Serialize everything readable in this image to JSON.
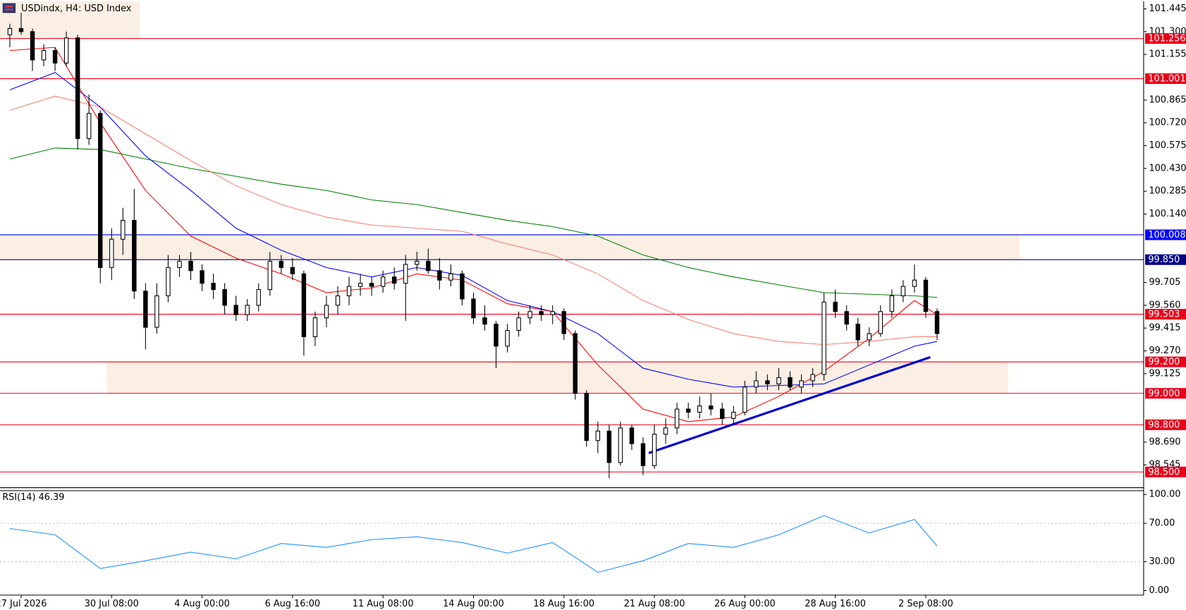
{
  "chart_data": {
    "type": "candlestick",
    "title": "USDindx, H4:  USD Index",
    "ylim": [
      98.4,
      101.493
    ],
    "yticks": [
      101.445,
      {
        "value": 101.3,
        "label": "101.300"
      },
      101.155,
      100.865,
      {
        "value": 100.72,
        "label": "100.720"
      },
      100.575,
      {
        "value": 100.43,
        "label": "100.430"
      },
      100.285,
      {
        "value": 100.14,
        "label": "100.140"
      },
      99.705,
      {
        "value": 99.56,
        "label": "99.560"
      },
      99.415,
      {
        "value": 99.27,
        "label": "99.270"
      },
      99.125,
      {
        "value": 98.69,
        "label": "98.690"
      },
      98.545
    ],
    "xticks": [
      {
        "value": 1,
        "label": "27 Jul 2026"
      },
      {
        "value": 9,
        "label": "30 Jul 08:00"
      },
      {
        "value": 17,
        "label": "4 Aug 00:00"
      },
      {
        "value": 25,
        "label": "6 Aug 16:00"
      },
      {
        "value": 33,
        "label": "11 Aug 08:00"
      },
      {
        "value": 41,
        "label": "14 Aug 00:00"
      },
      {
        "value": 49,
        "label": "18 Aug 16:00"
      },
      {
        "value": 57,
        "label": "21 Aug 08:00"
      },
      {
        "value": 65,
        "label": "26 Aug 00:00"
      },
      {
        "value": 73,
        "label": "28 Aug 16:00"
      },
      {
        "value": 81,
        "label": "2 Sep 08:00"
      }
    ],
    "open": [
      101.28,
      101.32,
      101.3,
      101.12,
      101.18,
      101.1,
      101.26,
      100.62,
      100.78,
      99.8,
      99.98,
      100.1,
      99.65,
      99.42,
      99.62,
      99.8,
      99.84,
      99.78,
      99.7,
      99.66,
      99.56,
      99.5,
      99.56,
      99.66,
      99.84,
      99.8,
      99.76,
      99.36,
      99.48,
      99.56,
      99.62,
      99.68,
      99.7,
      99.68,
      99.74,
      99.7,
      99.82,
      99.84,
      99.78,
      99.72,
      99.76,
      99.6,
      99.48,
      99.44,
      99.3,
      99.4,
      99.48,
      99.52,
      99.5,
      99.52,
      99.38,
      99.0,
      98.7,
      98.76,
      98.56,
      98.78,
      98.68,
      98.54,
      98.74,
      98.78,
      98.9,
      98.88,
      98.92,
      98.9,
      98.84,
      98.88,
      99.04,
      99.08,
      99.06,
      99.1,
      99.04,
      99.08,
      99.12,
      99.58,
      99.52,
      99.44,
      99.34,
      99.38,
      99.52,
      99.62,
      99.68,
      99.72,
      99.52
    ],
    "high": [
      101.35,
      101.42,
      101.32,
      101.22,
      101.2,
      101.3,
      101.28,
      100.9,
      100.8,
      100.05,
      100.18,
      100.3,
      99.7,
      99.7,
      99.88,
      99.88,
      99.9,
      99.82,
      99.76,
      99.7,
      99.62,
      99.6,
      99.7,
      99.9,
      99.88,
      99.86,
      99.78,
      99.52,
      99.62,
      99.68,
      99.74,
      99.76,
      99.74,
      99.78,
      99.8,
      99.88,
      99.9,
      99.92,
      99.86,
      99.82,
      99.78,
      99.64,
      99.56,
      99.46,
      99.44,
      99.52,
      99.56,
      99.56,
      99.56,
      99.54,
      99.4,
      99.02,
      98.82,
      98.8,
      98.82,
      98.8,
      98.72,
      98.8,
      98.84,
      98.94,
      98.94,
      98.98,
      99.0,
      98.94,
      98.92,
      99.08,
      99.14,
      99.12,
      99.16,
      99.14,
      99.12,
      99.16,
      99.64,
      99.66,
      99.56,
      99.48,
      99.42,
      99.56,
      99.66,
      99.72,
      99.82,
      99.74,
      99.54
    ],
    "low": [
      101.2,
      101.28,
      101.05,
      101.08,
      101.05,
      101.08,
      100.55,
      100.58,
      99.7,
      99.72,
      99.88,
      99.6,
      99.28,
      99.38,
      99.58,
      99.74,
      99.72,
      99.65,
      99.6,
      99.5,
      99.46,
      99.46,
      99.52,
      99.62,
      99.76,
      99.72,
      99.24,
      99.3,
      99.42,
      99.5,
      99.56,
      99.62,
      99.62,
      99.64,
      99.66,
      99.46,
      99.78,
      99.76,
      99.66,
      99.68,
      99.56,
      99.44,
      99.4,
      99.16,
      99.26,
      99.36,
      99.44,
      99.46,
      99.44,
      99.34,
      98.96,
      98.66,
      98.62,
      98.46,
      98.54,
      98.64,
      98.48,
      98.52,
      98.68,
      98.74,
      98.84,
      98.84,
      98.86,
      98.8,
      98.8,
      98.86,
      99.0,
      99.02,
      99.02,
      99.02,
      99.0,
      99.04,
      99.08,
      99.48,
      99.4,
      99.3,
      99.3,
      99.36,
      99.48,
      99.58,
      99.64,
      99.48,
      99.34
    ],
    "close": [
      101.32,
      101.3,
      101.12,
      101.18,
      101.1,
      101.26,
      100.62,
      100.78,
      99.8,
      99.98,
      100.1,
      99.65,
      99.42,
      99.62,
      99.8,
      99.84,
      99.78,
      99.7,
      99.66,
      99.56,
      99.5,
      99.56,
      99.66,
      99.84,
      99.8,
      99.76,
      99.36,
      99.48,
      99.56,
      99.62,
      99.68,
      99.7,
      99.68,
      99.74,
      99.7,
      99.82,
      99.84,
      99.78,
      99.72,
      99.76,
      99.6,
      99.48,
      99.44,
      99.3,
      99.4,
      99.48,
      99.52,
      99.5,
      99.52,
      99.38,
      99.0,
      98.7,
      98.76,
      98.56,
      98.78,
      98.68,
      98.54,
      98.74,
      98.78,
      98.9,
      98.88,
      98.92,
      98.9,
      98.84,
      98.88,
      99.04,
      99.08,
      99.06,
      99.1,
      99.04,
      99.08,
      99.12,
      99.58,
      99.52,
      99.44,
      99.34,
      99.38,
      99.52,
      99.62,
      99.68,
      99.72,
      99.52,
      99.38
    ],
    "overlays": {
      "x": [
        0,
        4,
        8,
        12,
        16,
        20,
        24,
        28,
        32,
        36,
        40,
        44,
        48,
        52,
        56,
        60,
        64,
        68,
        72,
        76,
        80,
        82
      ],
      "series": [
        {
          "color": "#008000",
          "values": [
            100.49,
            100.56,
            100.55,
            100.49,
            100.43,
            100.38,
            100.33,
            100.29,
            100.23,
            100.2,
            100.15,
            100.1,
            100.06,
            100.0,
            99.88,
            99.8,
            99.74,
            99.69,
            99.64,
            99.63,
            99.62,
            99.61
          ]
        },
        {
          "color": "#fa8072",
          "values": [
            100.8,
            100.89,
            100.82,
            100.65,
            100.48,
            100.32,
            100.2,
            100.12,
            100.07,
            100.05,
            100.03,
            99.95,
            99.88,
            99.76,
            99.59,
            99.47,
            99.38,
            99.33,
            99.31,
            99.33,
            99.36,
            99.36
          ]
        },
        {
          "color": "#0000ff",
          "values": [
            100.93,
            101.04,
            100.82,
            100.51,
            100.29,
            100.05,
            99.91,
            99.8,
            99.74,
            99.8,
            99.75,
            99.59,
            99.52,
            99.38,
            99.16,
            99.09,
            99.04,
            99.05,
            99.06,
            99.18,
            99.3,
            99.33
          ]
        },
        {
          "color": "#ff0000",
          "values": [
            101.18,
            101.2,
            100.72,
            100.29,
            100.0,
            99.86,
            99.76,
            99.64,
            99.67,
            99.76,
            99.72,
            99.57,
            99.52,
            99.18,
            98.9,
            98.82,
            98.85,
            98.98,
            99.14,
            99.35,
            99.59,
            99.5
          ]
        }
      ]
    },
    "trendline": {
      "color": "#0000cd",
      "x": [
        56.5,
        81.4
      ],
      "values": [
        98.62,
        99.23
      ]
    },
    "levels": [
      {
        "value": 101.256,
        "color": "#e8001c"
      },
      {
        "value": 101.001,
        "color": "#e8001c"
      },
      {
        "value": 100.008,
        "color": "#0000ff"
      },
      {
        "value": 99.85,
        "label": "99.850",
        "color": "#000080"
      },
      {
        "value": 99.503,
        "color": "#e8001c"
      },
      {
        "value": 99.2,
        "label": "99.200",
        "color": "#e8001c"
      },
      {
        "value": 99.0,
        "label": "99.000",
        "color": "#e8001c"
      },
      {
        "value": 98.8,
        "label": "98.800",
        "color": "#e8001c"
      },
      {
        "value": 98.5,
        "label": "98.500",
        "color": "#e8001c"
      }
    ],
    "zones": [
      {
        "low": 101.256,
        "high": 101.493,
        "color": "#fbefe4"
      },
      {
        "low": 99.85,
        "high": 100.008,
        "color": "#fbefe4"
      },
      {
        "low": 99.0,
        "high": 99.2,
        "color": "#fbefe4"
      }
    ],
    "rsi": {
      "title": "RSI(14) 46.39",
      "color": "#1e90ff",
      "ylim": [
        0,
        100
      ],
      "yticks": [
        {
          "value": 100,
          "label": "100.00"
        },
        {
          "value": 70,
          "label": "70.00"
        },
        {
          "value": 30,
          "label": "30.00"
        },
        {
          "value": 0,
          "label": "0.00"
        }
      ],
      "levels": [
        70,
        30
      ],
      "values": [
        64.6,
        58,
        23,
        31,
        40,
        33,
        49,
        45,
        53,
        56,
        50,
        39,
        50,
        19,
        31,
        49,
        45,
        58,
        78,
        60,
        74,
        46.39
      ]
    }
  }
}
